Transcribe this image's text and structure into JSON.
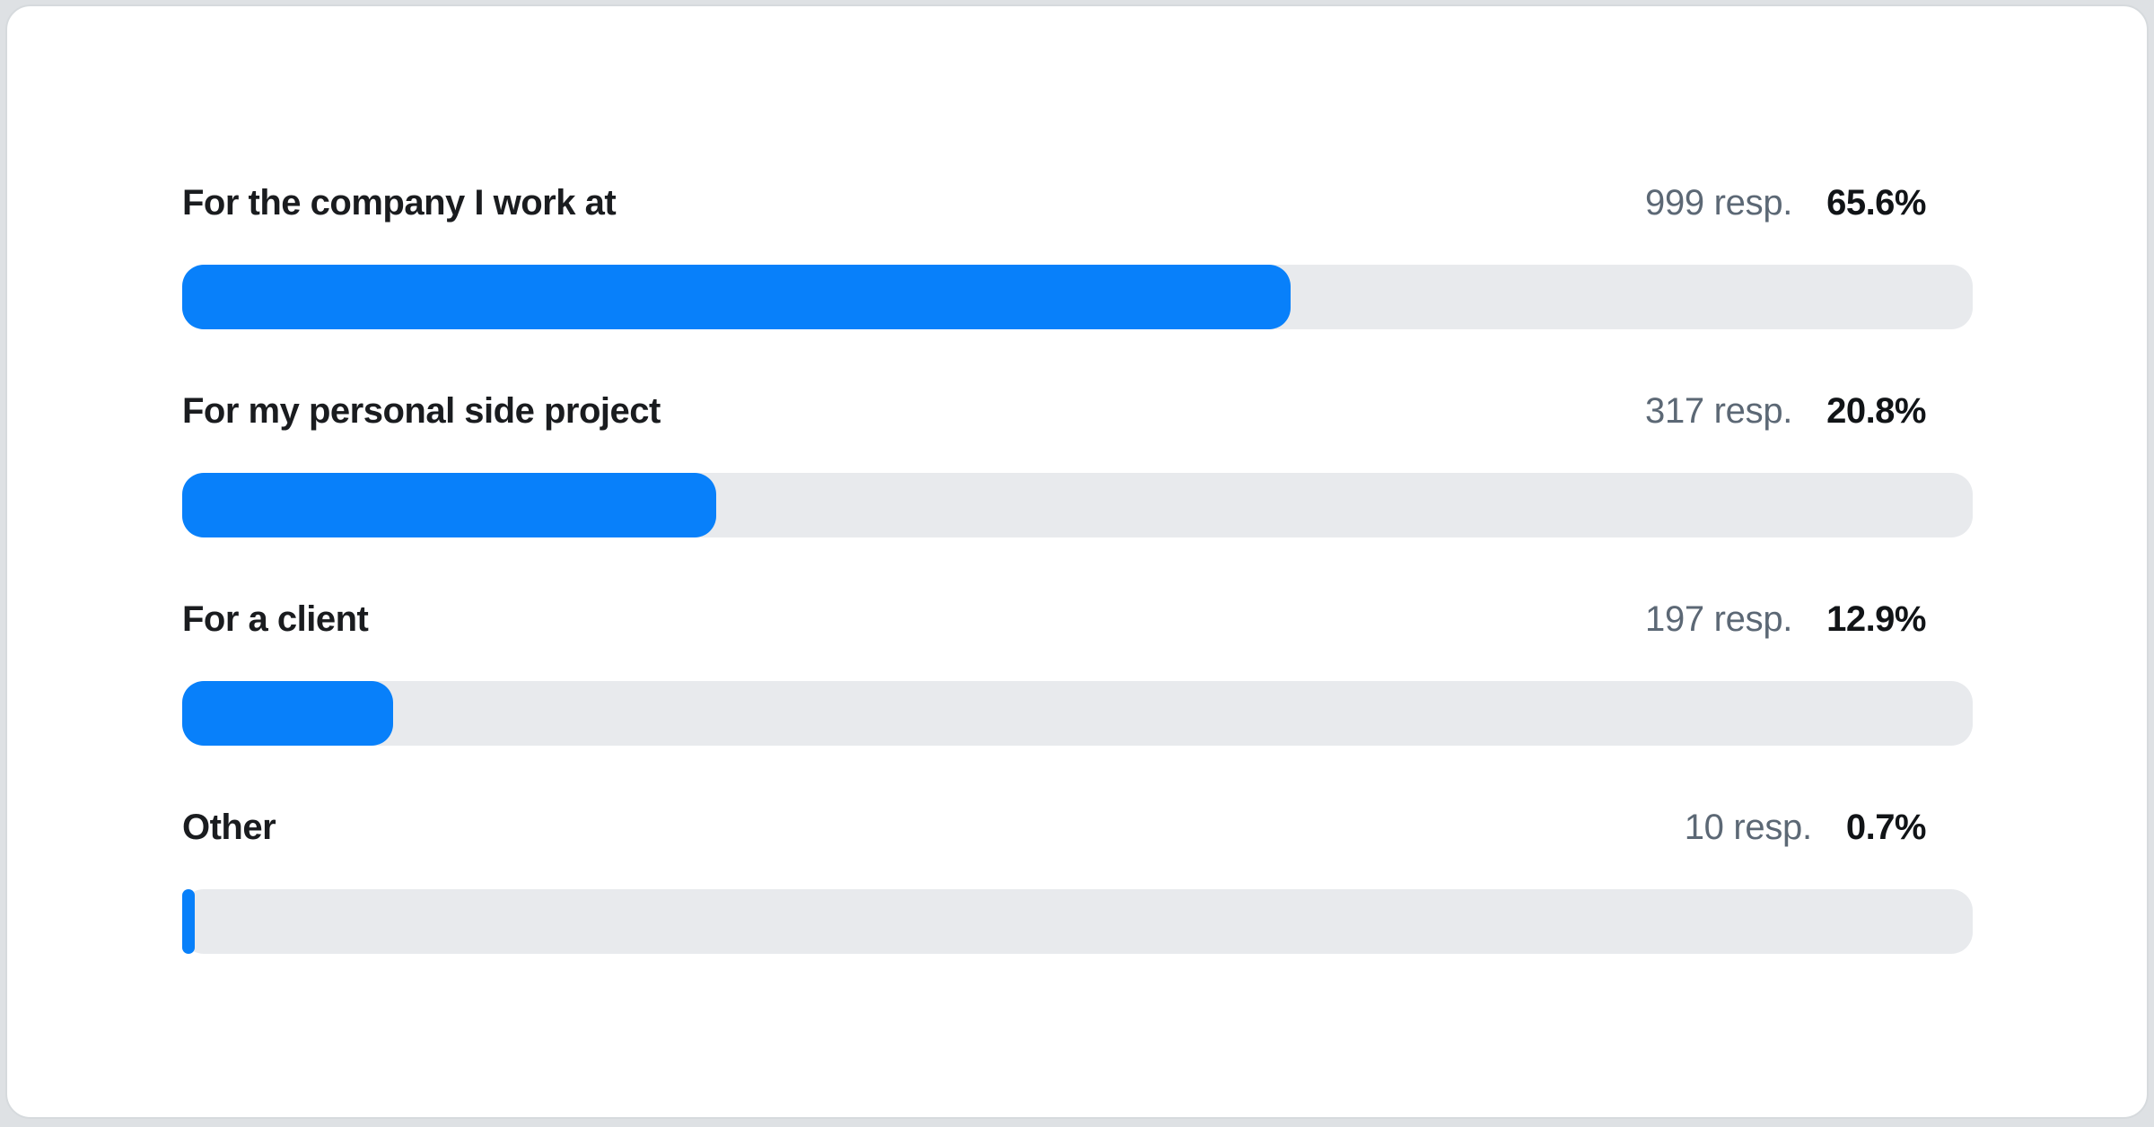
{
  "page": {
    "background_color": "#dee1e4"
  },
  "card": {
    "background_color": "#ffffff",
    "border_color": "#d6dadd"
  },
  "chart_data": {
    "type": "bar",
    "orientation": "horizontal",
    "title": "",
    "legend": "none",
    "grid": false,
    "categories": [
      "For the company I work at",
      "For my personal side project",
      "For a client",
      "Other"
    ],
    "series": [
      {
        "name": "respondents",
        "values": [
          999,
          317,
          197,
          10
        ]
      },
      {
        "name": "percent",
        "values": [
          65.6,
          20.8,
          12.9,
          0.7
        ]
      }
    ],
    "colors": {
      "bar_fill": "#0880fa",
      "bar_track": "#e8eaed"
    },
    "rows": [
      {
        "label": "For the company I work at",
        "responses_label": "999 resp.",
        "percent_label": "65.6%",
        "bar_width_pct": 61.9
      },
      {
        "label": "For my personal side project",
        "responses_label": "317 resp.",
        "percent_label": "20.8%",
        "bar_width_pct": 29.8
      },
      {
        "label": "For a client",
        "responses_label": "197 resp.",
        "percent_label": "12.9%",
        "bar_width_pct": 11.8
      },
      {
        "label": "Other",
        "responses_label": "10 resp.",
        "percent_label": "0.7%",
        "bar_width_pct": 0.7
      }
    ]
  }
}
